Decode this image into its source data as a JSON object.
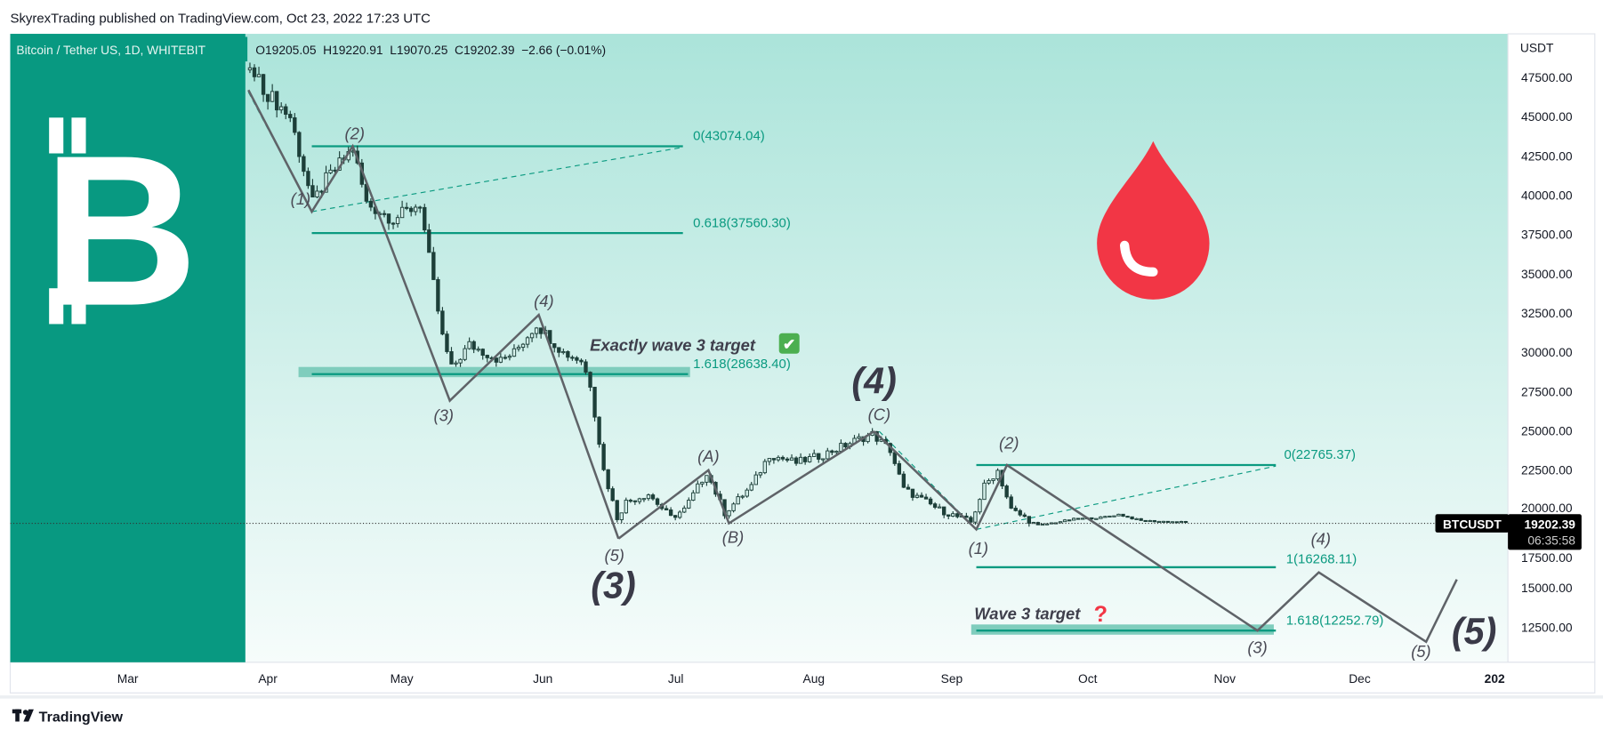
{
  "header": {
    "published": "SkyrexTrading published on TradingView.com, Oct 23, 2022 17:23 UTC"
  },
  "legend": {
    "symbol": "Bitcoin / Tether US, 1D, WHITEBIT",
    "ohlc": "O19205.05  H19220.91  L19070.25  C19202.39  −2.66 (−0.01%)"
  },
  "price_axis": {
    "currency": "USDT",
    "ticks": [
      "47500.00",
      "45000.00",
      "42500.00",
      "40000.00",
      "37500.00",
      "35000.00",
      "32500.00",
      "30000.00",
      "27500.00",
      "25000.00",
      "22500.00",
      "20000.00",
      "17500.00",
      "15000.00",
      "12500.00"
    ],
    "tick_values": [
      47500,
      45000,
      42500,
      40000,
      37500,
      35000,
      32500,
      30000,
      27500,
      25000,
      22500,
      20000,
      17500,
      15000,
      12500
    ]
  },
  "time_axis": {
    "ticks": [
      "Mar",
      "Apr",
      "May",
      "Jun",
      "Jul",
      "Aug",
      "Sep",
      "Oct",
      "Nov",
      "Dec",
      "202"
    ]
  },
  "last_price": {
    "symbol": "BTCUSDT",
    "price": "19202.39",
    "countdown": "06:35:58",
    "value": 19202.39
  },
  "fib_levels": {
    "a0": "0(43074.04)",
    "a618": "0.618(37560.30)",
    "a1618": "1.618(28638.40)",
    "b0": "0(22765.37)",
    "b1": "1(16268.11)",
    "b1618": "1.618(12252.79)"
  },
  "annotations": {
    "exactly": "Exactly wave 3 target",
    "exactly_icon": "✔",
    "wave3": "Wave 3 target",
    "wave3_icon": "?"
  },
  "wave_labels": {
    "w1": "(1)",
    "w2": "(2)",
    "w3": "(3)",
    "w4": "(4)",
    "w5": "(5)",
    "a": "(A)",
    "b": "(B)",
    "c": "(C)",
    "n1": "(1)",
    "n2": "(2)",
    "n3": "(3)",
    "n4": "(4)",
    "n5": "(5)",
    "big3": "(3)",
    "big4": "(4)",
    "big5": "(5)"
  },
  "chart_data": {
    "type": "candlestick",
    "note": "approximate daily closes, day = days since Apr 1 2022",
    "price_path": [
      [
        -4,
        48000
      ],
      [
        0,
        46500
      ],
      [
        5,
        45000
      ],
      [
        10,
        39500
      ],
      [
        13,
        41000
      ],
      [
        19,
        43000
      ],
      [
        22,
        39500
      ],
      [
        28,
        38500
      ],
      [
        34,
        39500
      ],
      [
        36,
        36000
      ],
      [
        39,
        31000
      ],
      [
        41,
        29000
      ],
      [
        45,
        30500
      ],
      [
        52,
        29500
      ],
      [
        55,
        30000
      ],
      [
        60,
        31800
      ],
      [
        66,
        30000
      ],
      [
        70,
        29500
      ],
      [
        72,
        28000
      ],
      [
        75,
        22500
      ],
      [
        78,
        19500
      ],
      [
        80,
        20500
      ],
      [
        85,
        21000
      ],
      [
        90,
        19500
      ],
      [
        93,
        20000
      ],
      [
        98,
        22400
      ],
      [
        102,
        19800
      ],
      [
        108,
        21500
      ],
      [
        112,
        23500
      ],
      [
        118,
        23000
      ],
      [
        124,
        23500
      ],
      [
        132,
        24500
      ],
      [
        135,
        24800
      ],
      [
        139,
        23800
      ],
      [
        142,
        21300
      ],
      [
        150,
        20000
      ],
      [
        157,
        19200
      ],
      [
        160,
        21500
      ],
      [
        163,
        22500
      ],
      [
        166,
        20000
      ],
      [
        172,
        19000
      ],
      [
        180,
        19400
      ],
      [
        186,
        19500
      ],
      [
        190,
        19700
      ],
      [
        195,
        19300
      ],
      [
        205,
        19202
      ]
    ],
    "colors": {
      "candle": "#1d3f39",
      "fib": "#0a9a80",
      "wave": "#5f6368",
      "panel": "#089981",
      "drop": "#f23645"
    }
  },
  "footer": {
    "brand": "TradingView"
  }
}
